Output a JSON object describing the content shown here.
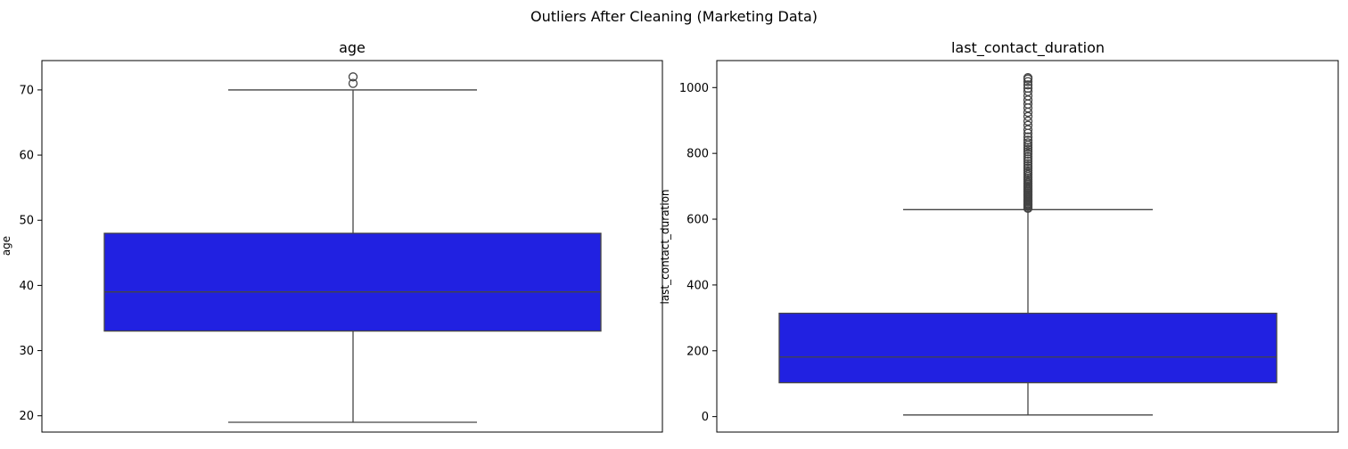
{
  "figure": {
    "suptitle": "Outliers After Cleaning (Marketing Data)"
  },
  "style": {
    "box_fill": "#2121e1",
    "line_color": "#444444",
    "background": "#ffffff"
  },
  "chart_data": [
    {
      "type": "box",
      "title": "age",
      "xlabel": "",
      "ylabel": "age",
      "ylim": [
        17.5,
        74.5
      ],
      "yticks": [
        20,
        30,
        40,
        50,
        60,
        70
      ],
      "whisker_low": 19,
      "q1": 33,
      "median": 39,
      "q3": 48,
      "whisker_high": 70,
      "outliers": [
        71,
        72
      ],
      "grid": false
    },
    {
      "type": "box",
      "title": "last_contact_duration",
      "xlabel": "",
      "ylabel": "last_contact_duration",
      "ylim": [
        -47,
        1082
      ],
      "yticks": [
        0,
        200,
        400,
        600,
        800,
        1000
      ],
      "whisker_low": 5,
      "q1": 103,
      "median": 181,
      "q3": 314,
      "whisker_high": 629,
      "outliers": [
        633,
        636,
        640,
        643,
        645,
        648,
        652,
        655,
        658,
        661,
        665,
        668,
        672,
        675,
        679,
        683,
        686,
        690,
        694,
        698,
        702,
        706,
        710,
        715,
        720,
        725,
        730,
        736,
        742,
        748,
        755,
        762,
        769,
        776,
        783,
        790,
        798,
        805,
        812,
        818,
        825,
        832,
        840,
        850,
        861,
        872,
        885,
        898,
        912,
        925,
        938,
        950,
        962,
        975,
        988,
        998,
        1008,
        1018,
        1026,
        1030
      ],
      "grid": false
    }
  ]
}
